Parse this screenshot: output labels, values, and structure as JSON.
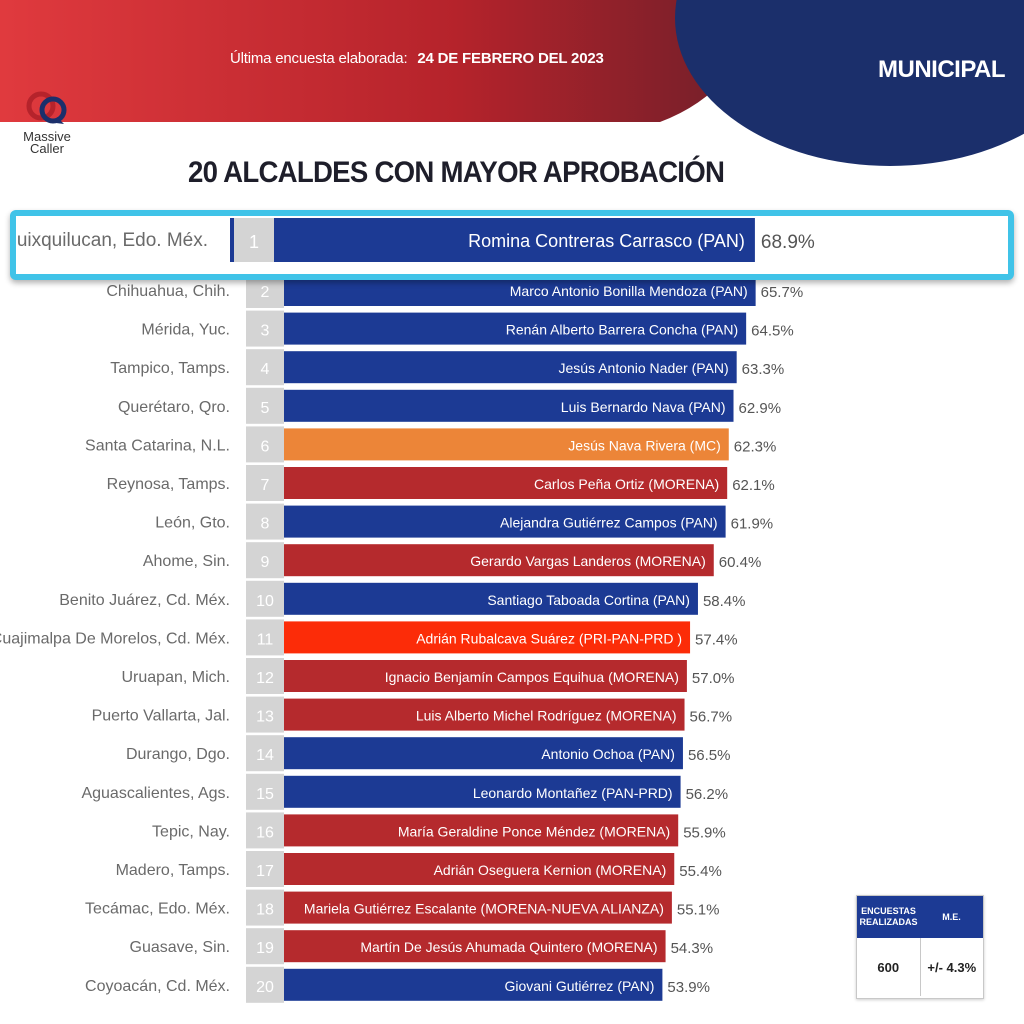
{
  "header": {
    "survey_label": "Última encuesta elaborada:",
    "survey_date": "24 DE FEBRERO DEL 2023",
    "section": "MUNICIPAL",
    "logo_line1": "Massive",
    "logo_line2": "Caller"
  },
  "colors": {
    "header_red": "#b8232a",
    "header_navy": "#1b2f6b",
    "highlight_border": "#40c3e8",
    "rank_box": "#d4d4d4"
  },
  "chart_data": {
    "type": "bar",
    "orientation": "horizontal",
    "title": "20 ALCALDES CON MAYOR APROBACIÓN",
    "unit": "%",
    "rows": [
      {
        "rank": "1",
        "city": "Huixquilucan, Edo. Méx.",
        "mayor": "Romina Contreras Carrasco  (PAN)",
        "value": 68.9,
        "label": "68.9%",
        "color": "#1c3a94"
      },
      {
        "rank": "2",
        "city": "Chihuahua, Chih.",
        "mayor": "Marco Antonio Bonilla Mendoza (PAN)",
        "value": 65.7,
        "label": "65.7%",
        "color": "#1c3a94"
      },
      {
        "rank": "3",
        "city": "Mérida, Yuc.",
        "mayor": "Renán Alberto Barrera Concha (PAN)",
        "value": 64.5,
        "label": "64.5%",
        "color": "#1c3a94"
      },
      {
        "rank": "4",
        "city": "Tampico, Tamps.",
        "mayor": "Jesús Antonio Nader  (PAN)",
        "value": 63.3,
        "label": "63.3%",
        "color": "#1c3a94"
      },
      {
        "rank": "5",
        "city": "Querétaro, Qro.",
        "mayor": "Luis Bernardo Nava (PAN)",
        "value": 62.9,
        "label": "62.9%",
        "color": "#1c3a94"
      },
      {
        "rank": "6",
        "city": "Santa Catarina, N.L.",
        "mayor": "Jesús Nava Rivera (MC)",
        "value": 62.3,
        "label": "62.3%",
        "color": "#ec8538"
      },
      {
        "rank": "7",
        "city": "Reynosa, Tamps.",
        "mayor": "Carlos Peña Ortiz (MORENA)",
        "value": 62.1,
        "label": "62.1%",
        "color": "#b52a2d"
      },
      {
        "rank": "8",
        "city": "León, Gto.",
        "mayor": "Alejandra Gutiérrez Campos (PAN)",
        "value": 61.9,
        "label": "61.9%",
        "color": "#1c3a94"
      },
      {
        "rank": "9",
        "city": "Ahome, Sin.",
        "mayor": "Gerardo Vargas Landeros (MORENA)",
        "value": 60.4,
        "label": "60.4%",
        "color": "#b52a2d"
      },
      {
        "rank": "10",
        "city": "Benito Juárez, Cd. Méx.",
        "mayor": "Santiago Taboada Cortina (PAN)",
        "value": 58.4,
        "label": "58.4%",
        "color": "#1c3a94"
      },
      {
        "rank": "11",
        "city": "Cuajimalpa De Morelos, Cd. Méx.",
        "mayor": "Adrián Rubalcava Suárez (PRI-PAN-PRD )",
        "value": 57.4,
        "label": "57.4%",
        "color": "#fc2c08"
      },
      {
        "rank": "12",
        "city": "Uruapan, Mich.",
        "mayor": "Ignacio Benjamín Campos Equihua (MORENA)",
        "value": 57.0,
        "label": "57.0%",
        "color": "#b52a2d"
      },
      {
        "rank": "13",
        "city": "Puerto Vallarta, Jal.",
        "mayor": "Luis Alberto Michel Rodríguez (MORENA)",
        "value": 56.7,
        "label": "56.7%",
        "color": "#b52a2d"
      },
      {
        "rank": "14",
        "city": "Durango, Dgo.",
        "mayor": "Antonio Ochoa (PAN)",
        "value": 56.5,
        "label": "56.5%",
        "color": "#1c3a94"
      },
      {
        "rank": "15",
        "city": "Aguascalientes, Ags.",
        "mayor": "Leonardo Montañez (PAN-PRD)",
        "value": 56.2,
        "label": "56.2%",
        "color": "#1c3a94"
      },
      {
        "rank": "16",
        "city": "Tepic, Nay.",
        "mayor": "María Geraldine Ponce Méndez (MORENA)",
        "value": 55.9,
        "label": "55.9%",
        "color": "#b52a2d"
      },
      {
        "rank": "17",
        "city": "Madero, Tamps.",
        "mayor": "Adrián Oseguera Kernion (MORENA)",
        "value": 55.4,
        "label": "55.4%",
        "color": "#b52a2d"
      },
      {
        "rank": "18",
        "city": "Tecámac, Edo. Méx.",
        "mayor": "Mariela Gutiérrez Escalante (MORENA-NUEVA ALIANZA)",
        "value": 55.1,
        "label": "55.1%",
        "color": "#b52a2d"
      },
      {
        "rank": "19",
        "city": "Guasave, Sin.",
        "mayor": "Martín De Jesús Ahumada Quintero  (MORENA)",
        "value": 54.3,
        "label": "54.3%",
        "color": "#b52a2d"
      },
      {
        "rank": "20",
        "city": "Coyoacán, Cd. Méx.",
        "mayor": "Giovani Gutiérrez (PAN)",
        "value": 53.9,
        "label": "53.9%",
        "color": "#1c3a94"
      }
    ]
  },
  "info_box": {
    "col1_header": "ENCUESTAS REALIZADAS",
    "col2_header": "M.E.",
    "col1_value": "600",
    "col2_value": "+/- 4.3%"
  }
}
